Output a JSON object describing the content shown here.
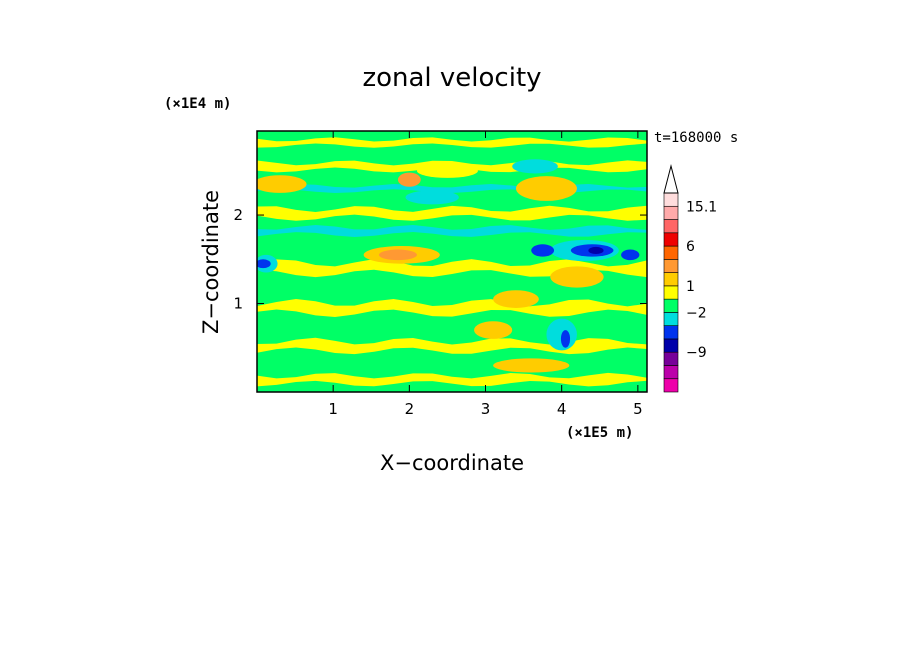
{
  "chart_data": {
    "type": "heatmap",
    "title": "zonal velocity",
    "xlabel": "X−coordinate",
    "ylabel": "Z−coordinate",
    "x_unit": "(×1E5 m)",
    "y_unit": "(×1E4 m)",
    "time_label": "t=168000 s",
    "xlim": [
      0,
      5.12
    ],
    "ylim": [
      0,
      2.95
    ],
    "x_ticks": [
      1,
      2,
      3,
      4,
      5
    ],
    "x_tick_labels": [
      "1",
      "2",
      "3",
      "4",
      "5"
    ],
    "y_ticks": [
      1,
      2
    ],
    "y_tick_labels": [
      "1",
      "2"
    ],
    "colorbar": {
      "colors": [
        "#ee00aa",
        "#bb00aa",
        "#770099",
        "#0000aa",
        "#0033ee",
        "#00dddd",
        "#00ff66",
        "#ffff00",
        "#ffcc00",
        "#ff9933",
        "#ff6600",
        "#ee0000",
        "#ff6666",
        "#ffaaaa",
        "#ffdddd"
      ],
      "level_labels": [
        {
          "text": "15.1",
          "level": 14
        },
        {
          "text": "6",
          "level": 11
        },
        {
          "text": "1",
          "level": 8
        },
        {
          "text": "−2",
          "level": 6
        },
        {
          "text": "−9",
          "level": 3
        }
      ],
      "extend_max_arrow": true
    },
    "fields": {
      "background": "#00ff66",
      "bands": [
        {
          "z": 0.14,
          "width": 0.09,
          "color": "#ffff00"
        },
        {
          "z": 0.52,
          "width": 0.11,
          "color": "#ffff00"
        },
        {
          "z": 0.95,
          "width": 0.12,
          "color": "#ffff00"
        },
        {
          "z": 1.4,
          "width": 0.12,
          "color": "#ffff00"
        },
        {
          "z": 2.02,
          "width": 0.1,
          "color": "#ffff00"
        },
        {
          "z": 2.55,
          "width": 0.08,
          "color": "#ffff00"
        },
        {
          "z": 2.82,
          "width": 0.07,
          "color": "#ffff00"
        },
        {
          "z": 1.82,
          "width": 0.08,
          "color": "#00dddd"
        },
        {
          "z": 2.3,
          "width": 0.06,
          "color": "#00dddd"
        }
      ],
      "blobs": [
        {
          "x": 0.3,
          "z": 2.35,
          "rx": 0.35,
          "rz": 0.1,
          "color": "#ffcc00"
        },
        {
          "x": 1.9,
          "z": 1.55,
          "rx": 0.5,
          "rz": 0.1,
          "color": "#ffcc00"
        },
        {
          "x": 1.85,
          "z": 1.55,
          "rx": 0.25,
          "rz": 0.06,
          "color": "#ff9933"
        },
        {
          "x": 3.8,
          "z": 2.3,
          "rx": 0.4,
          "rz": 0.14,
          "color": "#ffcc00"
        },
        {
          "x": 4.2,
          "z": 1.3,
          "rx": 0.35,
          "rz": 0.12,
          "color": "#ffcc00"
        },
        {
          "x": 3.4,
          "z": 1.05,
          "rx": 0.3,
          "rz": 0.1,
          "color": "#ffcc00"
        },
        {
          "x": 2.0,
          "z": 2.4,
          "rx": 0.15,
          "rz": 0.08,
          "color": "#ff9933"
        },
        {
          "x": 3.1,
          "z": 0.7,
          "rx": 0.25,
          "rz": 0.1,
          "color": "#ffcc00"
        },
        {
          "x": 0.12,
          "z": 1.45,
          "rx": 0.15,
          "rz": 0.1,
          "color": "#00dddd"
        },
        {
          "x": 0.08,
          "z": 1.45,
          "rx": 0.1,
          "rz": 0.05,
          "color": "#0033ee"
        },
        {
          "x": 2.3,
          "z": 2.2,
          "rx": 0.35,
          "rz": 0.08,
          "color": "#00dddd"
        },
        {
          "x": 3.65,
          "z": 2.55,
          "rx": 0.3,
          "rz": 0.08,
          "color": "#00dddd"
        },
        {
          "x": 4.3,
          "z": 1.6,
          "rx": 0.45,
          "rz": 0.12,
          "color": "#00dddd"
        },
        {
          "x": 4.4,
          "z": 1.6,
          "rx": 0.28,
          "rz": 0.07,
          "color": "#0033ee"
        },
        {
          "x": 4.45,
          "z": 1.6,
          "rx": 0.1,
          "rz": 0.04,
          "color": "#0000aa"
        },
        {
          "x": 3.75,
          "z": 1.6,
          "rx": 0.15,
          "rz": 0.07,
          "color": "#0033ee"
        },
        {
          "x": 4.9,
          "z": 1.55,
          "rx": 0.12,
          "rz": 0.06,
          "color": "#0033ee"
        },
        {
          "x": 4.0,
          "z": 0.65,
          "rx": 0.2,
          "rz": 0.18,
          "color": "#00dddd"
        },
        {
          "x": 4.05,
          "z": 0.6,
          "rx": 0.06,
          "rz": 0.1,
          "color": "#0033ee"
        },
        {
          "x": 2.5,
          "z": 2.5,
          "rx": 0.4,
          "rz": 0.08,
          "color": "#ffff00"
        },
        {
          "x": 3.6,
          "z": 0.3,
          "rx": 0.5,
          "rz": 0.08,
          "color": "#ffcc00"
        }
      ]
    }
  }
}
